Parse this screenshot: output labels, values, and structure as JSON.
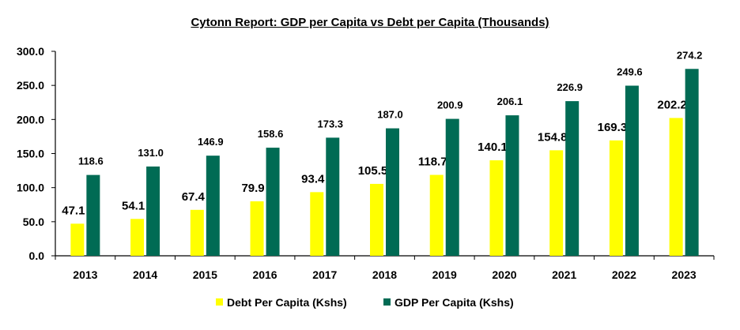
{
  "chart_data": {
    "type": "bar",
    "title": "Cytonn Report: GDP per Capita vs Debt per Capita (Thousands)",
    "categories": [
      "2013",
      "2014",
      "2015",
      "2016",
      "2017",
      "2018",
      "2019",
      "2020",
      "2021",
      "2022",
      "2023"
    ],
    "series": [
      {
        "name": "Debt Per Capita (Kshs)",
        "color": "#ffff00",
        "values": [
          47.1,
          54.1,
          67.4,
          79.9,
          93.4,
          105.5,
          118.7,
          140.1,
          154.8,
          169.3,
          202.2
        ],
        "labels": [
          "47.1",
          "54.1",
          "67.4",
          "79.9",
          "93.4",
          "105.5",
          "118.7",
          "140.1",
          "154.8",
          "169.3",
          "202.2"
        ]
      },
      {
        "name": "GDP Per Capita (Kshs)",
        "color": "#006b54",
        "values": [
          118.6,
          131.0,
          146.9,
          158.6,
          173.3,
          187.0,
          200.9,
          206.1,
          226.9,
          249.6,
          274.2
        ],
        "labels": [
          "118.6",
          "131.0",
          "146.9",
          "158.6",
          "173.3",
          "187.0",
          "200.9",
          "206.1",
          "226.9",
          "249.6",
          "274.2"
        ]
      }
    ],
    "yticks": [
      "0.0",
      "50.0",
      "100.0",
      "150.0",
      "200.0",
      "250.0",
      "300.0"
    ],
    "ylim": [
      0,
      300
    ],
    "grid": false,
    "legend_position": "bottom"
  }
}
